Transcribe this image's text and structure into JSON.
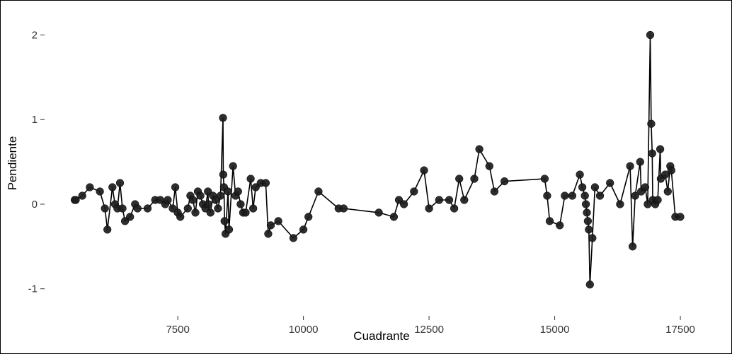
{
  "figure": {
    "xlabel": "Cuadrante",
    "ylabel": "Pendiente"
  },
  "chart_data": {
    "type": "line",
    "title": "",
    "xlabel": "Cuadrante",
    "ylabel": "Pendiente",
    "xlim": [
      4850,
      18260
    ],
    "ylim": [
      -1.32,
      2.28
    ],
    "x_ticks": [
      7500,
      10000,
      12500,
      15000,
      17500
    ],
    "y_ticks": [
      -1,
      0,
      1,
      2
    ],
    "grid": false,
    "legend": "none",
    "line_color": "#000000",
    "point_color": "#1c1c1c",
    "points": [
      [
        5450,
        0.05
      ],
      [
        5470,
        0.05
      ],
      [
        5600,
        0.1
      ],
      [
        5750,
        0.2
      ],
      [
        5950,
        0.15
      ],
      [
        6050,
        -0.05
      ],
      [
        6100,
        -0.3
      ],
      [
        6200,
        0.2
      ],
      [
        6250,
        0.0
      ],
      [
        6300,
        -0.05
      ],
      [
        6350,
        0.25
      ],
      [
        6400,
        -0.05
      ],
      [
        6450,
        -0.2
      ],
      [
        6550,
        -0.15
      ],
      [
        6650,
        0.0
      ],
      [
        6700,
        -0.05
      ],
      [
        6900,
        -0.05
      ],
      [
        7050,
        0.05
      ],
      [
        7150,
        0.05
      ],
      [
        7250,
        0.0
      ],
      [
        7300,
        0.05
      ],
      [
        7400,
        -0.05
      ],
      [
        7450,
        0.2
      ],
      [
        7500,
        -0.1
      ],
      [
        7550,
        -0.15
      ],
      [
        7700,
        -0.05
      ],
      [
        7750,
        0.1
      ],
      [
        7800,
        0.05
      ],
      [
        7850,
        -0.1
      ],
      [
        7900,
        0.15
      ],
      [
        7950,
        0.1
      ],
      [
        8000,
        0.0
      ],
      [
        8050,
        -0.05
      ],
      [
        8100,
        0.15
      ],
      [
        8110,
        0.0
      ],
      [
        8150,
        -0.1
      ],
      [
        8200,
        0.1
      ],
      [
        8250,
        0.05
      ],
      [
        8300,
        -0.05
      ],
      [
        8350,
        0.1
      ],
      [
        8400,
        1.02
      ],
      [
        8405,
        0.35
      ],
      [
        8420,
        0.2
      ],
      [
        8430,
        -0.2
      ],
      [
        8450,
        -0.35
      ],
      [
        8500,
        0.15
      ],
      [
        8520,
        -0.3
      ],
      [
        8600,
        0.45
      ],
      [
        8650,
        0.1
      ],
      [
        8700,
        0.15
      ],
      [
        8750,
        0.0
      ],
      [
        8800,
        -0.1
      ],
      [
        8850,
        -0.1
      ],
      [
        8950,
        0.3
      ],
      [
        9000,
        -0.05
      ],
      [
        9050,
        0.2
      ],
      [
        9150,
        0.25
      ],
      [
        9250,
        0.25
      ],
      [
        9300,
        -0.35
      ],
      [
        9350,
        -0.25
      ],
      [
        9500,
        -0.2
      ],
      [
        9800,
        -0.4
      ],
      [
        10000,
        -0.3
      ],
      [
        10100,
        -0.15
      ],
      [
        10300,
        0.15
      ],
      [
        10700,
        -0.05
      ],
      [
        10800,
        -0.05
      ],
      [
        11500,
        -0.1
      ],
      [
        11800,
        -0.15
      ],
      [
        11900,
        0.05
      ],
      [
        12000,
        0.0
      ],
      [
        12200,
        0.15
      ],
      [
        12400,
        0.4
      ],
      [
        12500,
        -0.05
      ],
      [
        12700,
        0.05
      ],
      [
        12900,
        0.05
      ],
      [
        13000,
        -0.05
      ],
      [
        13100,
        0.3
      ],
      [
        13200,
        0.05
      ],
      [
        13400,
        0.3
      ],
      [
        13500,
        0.65
      ],
      [
        13700,
        0.45
      ],
      [
        13800,
        0.15
      ],
      [
        14000,
        0.27
      ],
      [
        14800,
        0.3
      ],
      [
        14850,
        0.1
      ],
      [
        14900,
        -0.2
      ],
      [
        15100,
        -0.25
      ],
      [
        15200,
        0.1
      ],
      [
        15350,
        0.1
      ],
      [
        15500,
        0.35
      ],
      [
        15550,
        0.2
      ],
      [
        15600,
        0.1
      ],
      [
        15620,
        0.0
      ],
      [
        15640,
        -0.1
      ],
      [
        15660,
        -0.2
      ],
      [
        15680,
        -0.3
      ],
      [
        15700,
        -0.95
      ],
      [
        15750,
        -0.4
      ],
      [
        15800,
        0.2
      ],
      [
        15900,
        0.1
      ],
      [
        16100,
        0.25
      ],
      [
        16300,
        0.0
      ],
      [
        16500,
        0.45
      ],
      [
        16550,
        -0.5
      ],
      [
        16600,
        0.1
      ],
      [
        16700,
        0.5
      ],
      [
        16720,
        0.15
      ],
      [
        16800,
        0.2
      ],
      [
        16850,
        0.0
      ],
      [
        16900,
        2.0
      ],
      [
        16920,
        0.95
      ],
      [
        16940,
        0.6
      ],
      [
        16950,
        0.05
      ],
      [
        17000,
        0.0
      ],
      [
        17050,
        0.05
      ],
      [
        17100,
        0.65
      ],
      [
        17110,
        0.3
      ],
      [
        17200,
        0.35
      ],
      [
        17250,
        0.15
      ],
      [
        17300,
        0.45
      ],
      [
        17320,
        0.4
      ],
      [
        17400,
        -0.15
      ],
      [
        17500,
        -0.15
      ]
    ]
  }
}
